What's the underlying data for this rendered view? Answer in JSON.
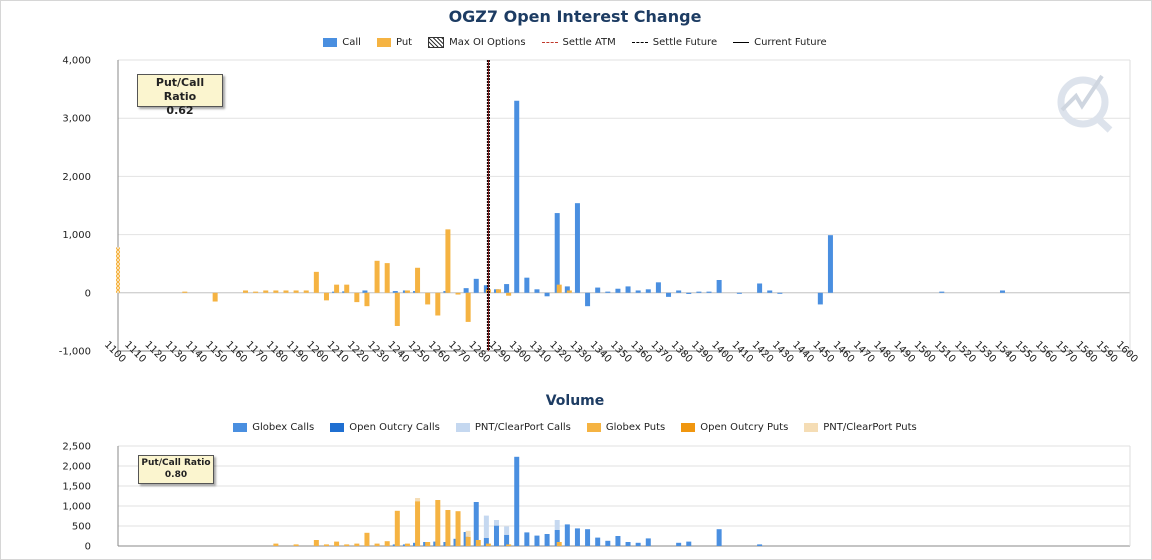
{
  "chart_data": [
    {
      "type": "bar",
      "title": "OGZ7 Open Interest Change",
      "ylim": [
        -1000,
        4000
      ],
      "yticks": [
        "-1,000",
        "0",
        "1,000",
        "2,000",
        "3,000",
        "4,000"
      ],
      "grid": true,
      "legend_position": "top-center",
      "legend": [
        {
          "label": "Call",
          "kind": "bar",
          "color": "#4a8fe0"
        },
        {
          "label": "Put",
          "kind": "bar",
          "color": "#f5b342"
        },
        {
          "label": "Max OI Options",
          "kind": "hatch"
        },
        {
          "label": "Settle ATM",
          "kind": "dash",
          "color": "#c0392b"
        },
        {
          "label": "Settle Future",
          "kind": "dash",
          "color": "#000000"
        },
        {
          "label": "Current Future",
          "kind": "solid",
          "color": "#000000"
        }
      ],
      "categories": [
        1100,
        1110,
        1120,
        1130,
        1140,
        1150,
        1160,
        1170,
        1180,
        1190,
        1200,
        1210,
        1220,
        1230,
        1240,
        1250,
        1260,
        1270,
        1280,
        1290,
        1300,
        1310,
        1320,
        1330,
        1340,
        1350,
        1360,
        1370,
        1380,
        1390,
        1400,
        1410,
        1420,
        1430,
        1440,
        1450,
        1460,
        1470,
        1480,
        1490,
        1500,
        1510,
        1520,
        1530,
        1540,
        1550,
        1560,
        1570,
        1580,
        1590,
        1600
      ],
      "series": [
        {
          "name": "Call",
          "color": "#4a8fe0",
          "points": [
            [
              1207,
              20
            ],
            [
              1212,
              25
            ],
            [
              1222,
              40
            ],
            [
              1237,
              30
            ],
            [
              1242,
              40
            ],
            [
              1247,
              30
            ],
            [
              1262,
              30
            ],
            [
              1272,
              80
            ],
            [
              1277,
              240
            ],
            [
              1282,
              130
            ],
            [
              1287,
              60
            ],
            [
              1292,
              150
            ],
            [
              1297,
              3300
            ],
            [
              1302,
              260
            ],
            [
              1307,
              60
            ],
            [
              1312,
              -60
            ],
            [
              1317,
              1370
            ],
            [
              1322,
              110
            ],
            [
              1327,
              1540
            ],
            [
              1332,
              -230
            ],
            [
              1337,
              90
            ],
            [
              1342,
              20
            ],
            [
              1347,
              70
            ],
            [
              1352,
              110
            ],
            [
              1357,
              40
            ],
            [
              1362,
              60
            ],
            [
              1367,
              180
            ],
            [
              1372,
              -70
            ],
            [
              1377,
              40
            ],
            [
              1382,
              -20
            ],
            [
              1387,
              20
            ],
            [
              1392,
              20
            ],
            [
              1397,
              220
            ],
            [
              1407,
              -10
            ],
            [
              1417,
              160
            ],
            [
              1422,
              40
            ],
            [
              1427,
              -10
            ],
            [
              1447,
              -200
            ],
            [
              1452,
              990
            ],
            [
              1507,
              20
            ],
            [
              1537,
              40
            ]
          ]
        },
        {
          "name": "Put",
          "color": "#f5b342",
          "points": [
            [
              1133,
              20
            ],
            [
              1148,
              -150
            ],
            [
              1163,
              40
            ],
            [
              1168,
              20
            ],
            [
              1173,
              40
            ],
            [
              1178,
              40
            ],
            [
              1183,
              40
            ],
            [
              1188,
              40
            ],
            [
              1193,
              40
            ],
            [
              1198,
              360
            ],
            [
              1203,
              -130
            ],
            [
              1208,
              140
            ],
            [
              1213,
              140
            ],
            [
              1218,
              -160
            ],
            [
              1223,
              -230
            ],
            [
              1228,
              550
            ],
            [
              1233,
              510
            ],
            [
              1238,
              -570
            ],
            [
              1243,
              40
            ],
            [
              1248,
              430
            ],
            [
              1253,
              -200
            ],
            [
              1258,
              -390
            ],
            [
              1263,
              1090
            ],
            [
              1268,
              -30
            ],
            [
              1273,
              -500
            ],
            [
              1283,
              60
            ],
            [
              1288,
              60
            ],
            [
              1293,
              -50
            ],
            [
              1318,
              140
            ],
            [
              1323,
              40
            ]
          ]
        },
        {
          "name": "Max OI Options",
          "hatch": true,
          "points": [
            [
              1100,
              780
            ]
          ]
        }
      ],
      "vlines": [
        {
          "label": "Settle Future",
          "x": 1283
        },
        {
          "label": "Current Future",
          "x": 1283
        }
      ],
      "annotations": [
        {
          "label": "Put/Call Ratio",
          "value": "0.62"
        }
      ]
    },
    {
      "type": "bar",
      "title": "Volume",
      "ylim": [
        0,
        2500
      ],
      "yticks": [
        "0",
        "500",
        "1,000",
        "1,500",
        "2,000",
        "2,500"
      ],
      "grid": true,
      "legend_position": "top-center",
      "legend": [
        {
          "label": "Globex Calls",
          "color": "#4a8fe0"
        },
        {
          "label": "Open Outcry Calls",
          "color": "#1f6fd1"
        },
        {
          "label": "PNT/ClearPort Calls",
          "color": "#c5d8f0"
        },
        {
          "label": "Globex Puts",
          "color": "#f5b342"
        },
        {
          "label": "Open Outcry Puts",
          "color": "#f0960f"
        },
        {
          "label": "PNT/ClearPort Puts",
          "color": "#f5ddb5"
        }
      ],
      "series": [
        {
          "name": "Globex Calls",
          "color": "#4a8fe0",
          "points": [
            [
              1237,
              40
            ],
            [
              1242,
              40
            ],
            [
              1247,
              80
            ],
            [
              1252,
              100
            ],
            [
              1257,
              110
            ],
            [
              1262,
              100
            ],
            [
              1267,
              180
            ],
            [
              1272,
              350
            ],
            [
              1277,
              1100
            ],
            [
              1282,
              200
            ],
            [
              1287,
              510
            ],
            [
              1292,
              280
            ],
            [
              1297,
              2230
            ],
            [
              1302,
              340
            ],
            [
              1307,
              260
            ],
            [
              1312,
              300
            ],
            [
              1317,
              400
            ],
            [
              1322,
              540
            ],
            [
              1327,
              440
            ],
            [
              1332,
              420
            ],
            [
              1337,
              210
            ],
            [
              1342,
              130
            ],
            [
              1347,
              250
            ],
            [
              1352,
              100
            ],
            [
              1357,
              80
            ],
            [
              1362,
              190
            ],
            [
              1377,
              80
            ],
            [
              1382,
              110
            ],
            [
              1397,
              420
            ],
            [
              1417,
              40
            ]
          ]
        },
        {
          "name": "PNT/ClearPort Calls",
          "color": "#c5d8f0",
          "points": [
            [
              1282,
              560
            ],
            [
              1287,
              140
            ],
            [
              1292,
              210
            ],
            [
              1317,
              250
            ]
          ]
        },
        {
          "name": "Globex Puts",
          "color": "#f5b342",
          "points": [
            [
              1178,
              60
            ],
            [
              1188,
              40
            ],
            [
              1198,
              150
            ],
            [
              1203,
              40
            ],
            [
              1208,
              110
            ],
            [
              1213,
              40
            ],
            [
              1218,
              60
            ],
            [
              1223,
              330
            ],
            [
              1228,
              60
            ],
            [
              1233,
              120
            ],
            [
              1238,
              880
            ],
            [
              1243,
              60
            ],
            [
              1248,
              1120
            ],
            [
              1253,
              100
            ],
            [
              1258,
              1150
            ],
            [
              1263,
              900
            ],
            [
              1268,
              870
            ],
            [
              1273,
              230
            ],
            [
              1278,
              150
            ],
            [
              1283,
              60
            ],
            [
              1293,
              40
            ],
            [
              1318,
              100
            ]
          ]
        },
        {
          "name": "PNT/ClearPort Puts",
          "color": "#f5ddb5",
          "points": [
            [
              1248,
              80
            ],
            [
              1273,
              150
            ]
          ]
        }
      ],
      "annotations": [
        {
          "label": "Put/Call Ratio",
          "value": "0.80"
        }
      ]
    }
  ]
}
